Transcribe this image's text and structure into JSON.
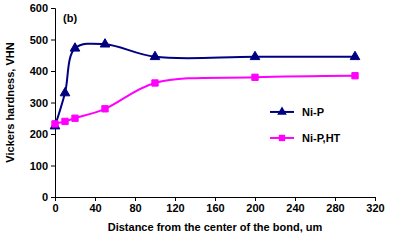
{
  "chart_data": {
    "type": "line",
    "x_label": "Distance from the center of the bond, um",
    "y_label": "Vickers hardness, VHN",
    "annotations": [
      "(b)"
    ],
    "x": [
      0,
      10,
      20,
      50,
      100,
      200,
      300
    ],
    "series": [
      {
        "name": "Ni-P",
        "color": "#000080",
        "marker": "triangle",
        "values": [
          225,
          330,
          472,
          485,
          445,
          445,
          445
        ]
      },
      {
        "name": "Ni-P,HT",
        "color": "#ff00ff",
        "marker": "square",
        "values": [
          232,
          240,
          250,
          280,
          362,
          380,
          385
        ]
      }
    ],
    "xlim": [
      0,
      320
    ],
    "xticks": [
      0,
      40,
      80,
      120,
      160,
      200,
      240,
      280,
      320
    ],
    "ylim": [
      0,
      600
    ],
    "yticks": [
      0,
      100,
      200,
      300,
      400,
      500,
      600
    ],
    "line_style": "smooth",
    "legend": "right",
    "grid": false
  }
}
